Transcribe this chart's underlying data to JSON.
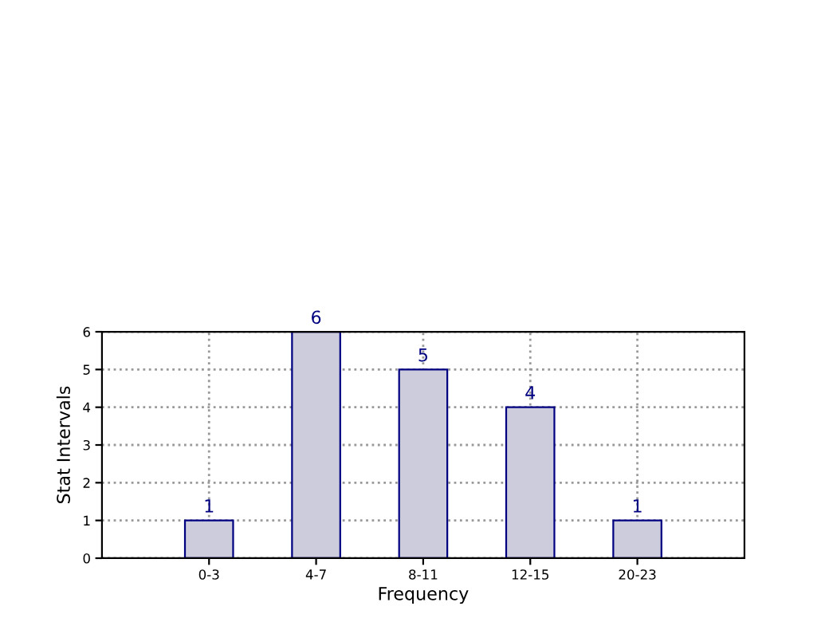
{
  "chart_data": {
    "type": "bar",
    "xlabel": "Frequency",
    "ylabel": "Stat Intervals",
    "categories": [
      "0-3",
      "4-7",
      "8-11",
      "12-15",
      "20-23"
    ],
    "values": [
      1,
      6,
      5,
      4,
      1
    ],
    "color": "#ccccdd",
    "ylim": [
      0,
      6
    ],
    "yticks": [
      0,
      1,
      2,
      3,
      4,
      5,
      6
    ],
    "grid": true,
    "data_labels": true
  }
}
